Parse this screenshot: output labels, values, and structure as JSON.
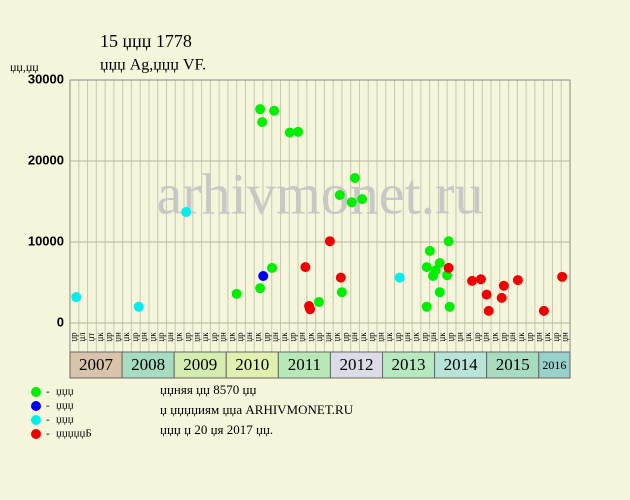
{
  "chart_data": {
    "type": "scatter",
    "title": "15 џџџ 1778",
    "subtitle": "џџџ Ag,џџџ VF.",
    "y_label": "џџ,џџ",
    "watermark": "arhivmonet.ru",
    "xlim": [
      2007,
      2016.6
    ],
    "xticks": [
      {
        "value": 2007,
        "label": "2007"
      },
      {
        "value": 2008,
        "label": "2008"
      },
      {
        "value": 2009,
        "label": "2009"
      },
      {
        "value": 2010,
        "label": "2010"
      },
      {
        "value": 2011,
        "label": "2011"
      },
      {
        "value": 2012,
        "label": "2012"
      },
      {
        "value": 2013,
        "label": "2013"
      },
      {
        "value": 2014,
        "label": "2014"
      },
      {
        "value": 2015,
        "label": "2015"
      },
      {
        "value": 2016,
        "label": "2016"
      }
    ],
    "year_colors": [
      "#d9c3ab",
      "#a8dcc0",
      "#d4ecb0",
      "#e0f0b0",
      "#b8e8b8",
      "#dcdce8",
      "#b8e8c0",
      "#b8e4d8",
      "#a8dcc0",
      "#98d0cc"
    ],
    "column_labels": [
      "џр",
      "џл",
      "џт",
      "џк",
      "џр",
      "џн",
      "џк",
      "џр",
      "џн",
      "џк",
      "џр",
      "џн",
      "џк",
      "џр",
      "џн",
      "џк",
      "џр",
      "џн",
      "џк",
      "џр",
      "џн",
      "џк",
      "џр",
      "џн",
      "џк",
      "џр",
      "џн",
      "џк",
      "џр",
      "џн",
      "џк",
      "џр",
      "џн",
      "џк",
      "џр",
      "џн",
      "џк",
      "џр",
      "џн",
      "џк",
      "џр",
      "џн",
      "џк",
      "џр",
      "џн",
      "џк",
      "џр",
      "џн",
      "џк",
      "џр",
      "џн",
      "џк",
      "џр",
      "џн",
      "џк",
      "џр",
      "џн"
    ],
    "ylim": [
      0,
      30000
    ],
    "yticks": [
      0,
      10000,
      20000,
      30000
    ],
    "grid": true,
    "series": [
      {
        "name": "џџџ",
        "color": "#00ee00",
        "x": [
          2010.65,
          2010.69,
          2010.92,
          2010.88,
          2010.65,
          2010.2,
          2011.22,
          2011.38,
          2011.78,
          2012.18,
          2012.47,
          2012.41,
          2012.61,
          2012.22,
          2013.91,
          2013.85,
          2013.97,
          2014.02,
          2014.1,
          2014.1,
          2014.27,
          2014.24,
          2013.85,
          2014.29
        ],
        "values": [
          26400,
          24800,
          26200,
          6800,
          4300,
          3600,
          23500,
          23600,
          2600,
          15800,
          17900,
          14900,
          15300,
          3800,
          8900,
          6900,
          5800,
          6500,
          7400,
          3800,
          10100,
          5900,
          2000,
          2000
        ]
      },
      {
        "name": "џџџ",
        "color": "#0000ee",
        "x": [
          2010.71
        ],
        "values": [
          5800
        ]
      },
      {
        "name": "џџџ",
        "color": "#00eeee",
        "x": [
          2007.12,
          2008.32,
          2009.23,
          2013.33
        ],
        "values": [
          3200,
          2000,
          13700,
          5600
        ]
      },
      {
        "name": "џџџџџБ",
        "color": "#ee0000",
        "x": [
          2011.52,
          2011.59,
          2011.61,
          2011.99,
          2012.2,
          2014.27,
          2014.72,
          2014.89,
          2015.0,
          2015.04,
          2015.29,
          2015.33,
          2015.6,
          2016.1,
          2016.45
        ],
        "values": [
          6900,
          2100,
          1700,
          10100,
          5600,
          6800,
          5200,
          5400,
          3500,
          1500,
          3100,
          4600,
          5300,
          1500,
          5700
        ]
      }
    ],
    "notes": [
      "џџняя џџ 8570 џџ",
      "џ џџџџиям џџа ARHIVMONET.RU",
      "џџџ џ 20 џя 2017 џџ."
    ]
  }
}
